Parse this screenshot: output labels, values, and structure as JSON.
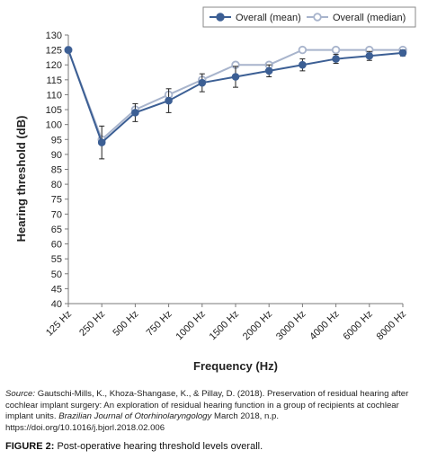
{
  "chart_data": {
    "type": "line",
    "title": "",
    "xlabel": "Frequency (Hz)",
    "ylabel": "Hearing threshold (dB)",
    "ylim": [
      40,
      130
    ],
    "yticks": [
      40,
      45,
      50,
      55,
      60,
      65,
      70,
      75,
      80,
      85,
      90,
      95,
      100,
      105,
      110,
      115,
      120,
      125,
      130
    ],
    "categories": [
      "125 Hz",
      "250 Hz",
      "500 Hz",
      "750 Hz",
      "1000 Hz",
      "1500 Hz",
      "2000 Hz",
      "3000 Hz",
      "4000 Hz",
      "6000 Hz",
      "8000 Hz"
    ],
    "legend_position": "top-right",
    "grid": false,
    "series": [
      {
        "name": "Overall (mean)",
        "color": "#3c5f94",
        "values": [
          125,
          94,
          104,
          108,
          114,
          116,
          118,
          120,
          122,
          123,
          124
        ],
        "error": [
          0.5,
          5.5,
          3,
          4,
          3,
          3.5,
          2,
          2,
          1.5,
          1.5,
          1
        ]
      },
      {
        "name": "Overall (median)",
        "color": "#a8b4cc",
        "values": [
          125,
          95,
          105,
          110,
          115,
          120,
          120,
          125,
          125,
          125,
          125
        ]
      }
    ]
  },
  "source": {
    "lead": "Source:",
    "text": " Gautschi-Mills, K., Khoza-Shangase, K., & Pillay, D. (2018). Preservation of residual hearing after cochlear implant surgery: An exploration of residual hearing function in a group of recipients at cochlear implant units. ",
    "journal": "Brazilian Journal of Otorhinolaryngology",
    "tail": " March 2018, n.p. https://doi.org/10.1016/j.bjorl.2018.02.006"
  },
  "caption": {
    "label": "FIGURE 2:",
    "text": " Post-operative hearing threshold levels overall."
  }
}
